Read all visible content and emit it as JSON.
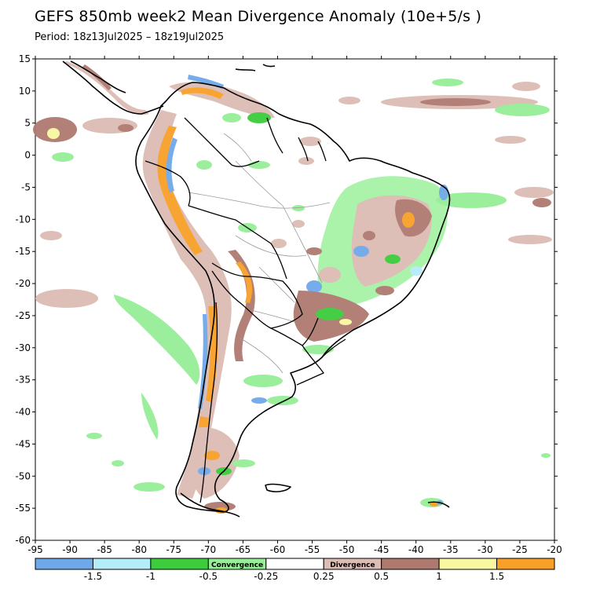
{
  "header": {
    "title": "GEFS 850mb week2 Mean Divergence Anomaly (10e+5/s )",
    "period": "Period: 18z13Jul2025 – 18z19Jul2025"
  },
  "map": {
    "lon_range": [
      -95,
      -20
    ],
    "lat_range": [
      -60,
      15
    ],
    "x_ticks": [
      "-95",
      "-90",
      "-85",
      "-80",
      "-75",
      "-70",
      "-65",
      "-60",
      "-55",
      "-50",
      "-45",
      "-40",
      "-35",
      "-30",
      "-25",
      "-20"
    ],
    "y_ticks": [
      "15",
      "10",
      "5",
      "0",
      "-5",
      "-10",
      "-15",
      "-20",
      "-25",
      "-30",
      "-35",
      "-40",
      "-45",
      "-50",
      "-55",
      "-60"
    ]
  },
  "colorbar": {
    "colors": [
      "#6fa8e8",
      "#b4ecf8",
      "#3ccc3c",
      "#96ee96",
      "#ffffff",
      "#dcbcb4",
      "#ae7a70",
      "#f8f8a0",
      "#f8a028"
    ],
    "labels": [
      "-1.5",
      "-1",
      "-0.5",
      "-0.25",
      "0.25",
      "0.5",
      "1",
      "1.5"
    ],
    "convergence_label": "Convergence",
    "divergence_label": "Divergence"
  }
}
